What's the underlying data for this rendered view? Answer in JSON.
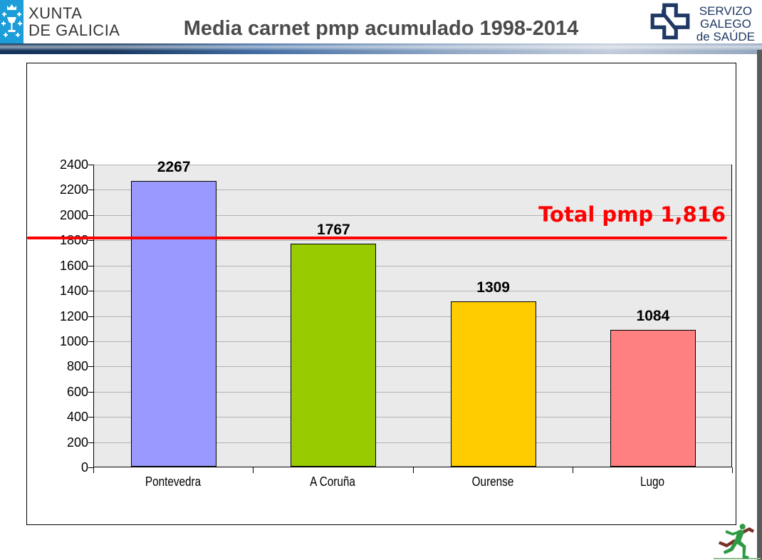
{
  "header": {
    "xunta_logo": {
      "line1": "XUNTA",
      "line2": "DE GALICIA"
    },
    "title": "Media carnet pmp acumulado 1998-2014",
    "sergas_logo": {
      "line1": "SERVIZO",
      "line2": "GALEGO",
      "line3": "de SAÚDE"
    }
  },
  "chart_data": {
    "type": "bar",
    "title": "Media carnet pmp acumulado 1998-2014",
    "categories": [
      "Pontevedra",
      "A Coruña",
      "Ourense",
      "Lugo"
    ],
    "values": [
      2267,
      1767,
      1309,
      1084
    ],
    "bar_colors": [
      "#9999FF",
      "#99CC00",
      "#FFCC00",
      "#FF8080"
    ],
    "xlabel": "",
    "ylabel": "",
    "ylim": [
      0,
      2400
    ],
    "ytick_step": 200,
    "grid": true,
    "legend": false,
    "plot_background": "speckled light gray",
    "reference_line": {
      "value": 1816,
      "label": "Total pmp 1,816",
      "color": "#FF0000"
    }
  },
  "colors": {
    "xunta_blue": "#1E9ED9",
    "sergas_navy": "#1F3864",
    "title_gray": "#4B4B4B",
    "header_bar_dark": "#17375E",
    "header_bar_light": "#C2CCDA",
    "side_strip_gray": "#5A5A5A",
    "annotation_red": "#FF0000",
    "gridline_gray": "#B3B3B3",
    "runner_green": "#2E9B44",
    "runner_maroon": "#7B3128"
  },
  "icons": {
    "xunta_emblem": "crown-chalice-with-crosses",
    "sergas_cross": "outlined-cross-with-slash",
    "runner": "running-figure"
  }
}
